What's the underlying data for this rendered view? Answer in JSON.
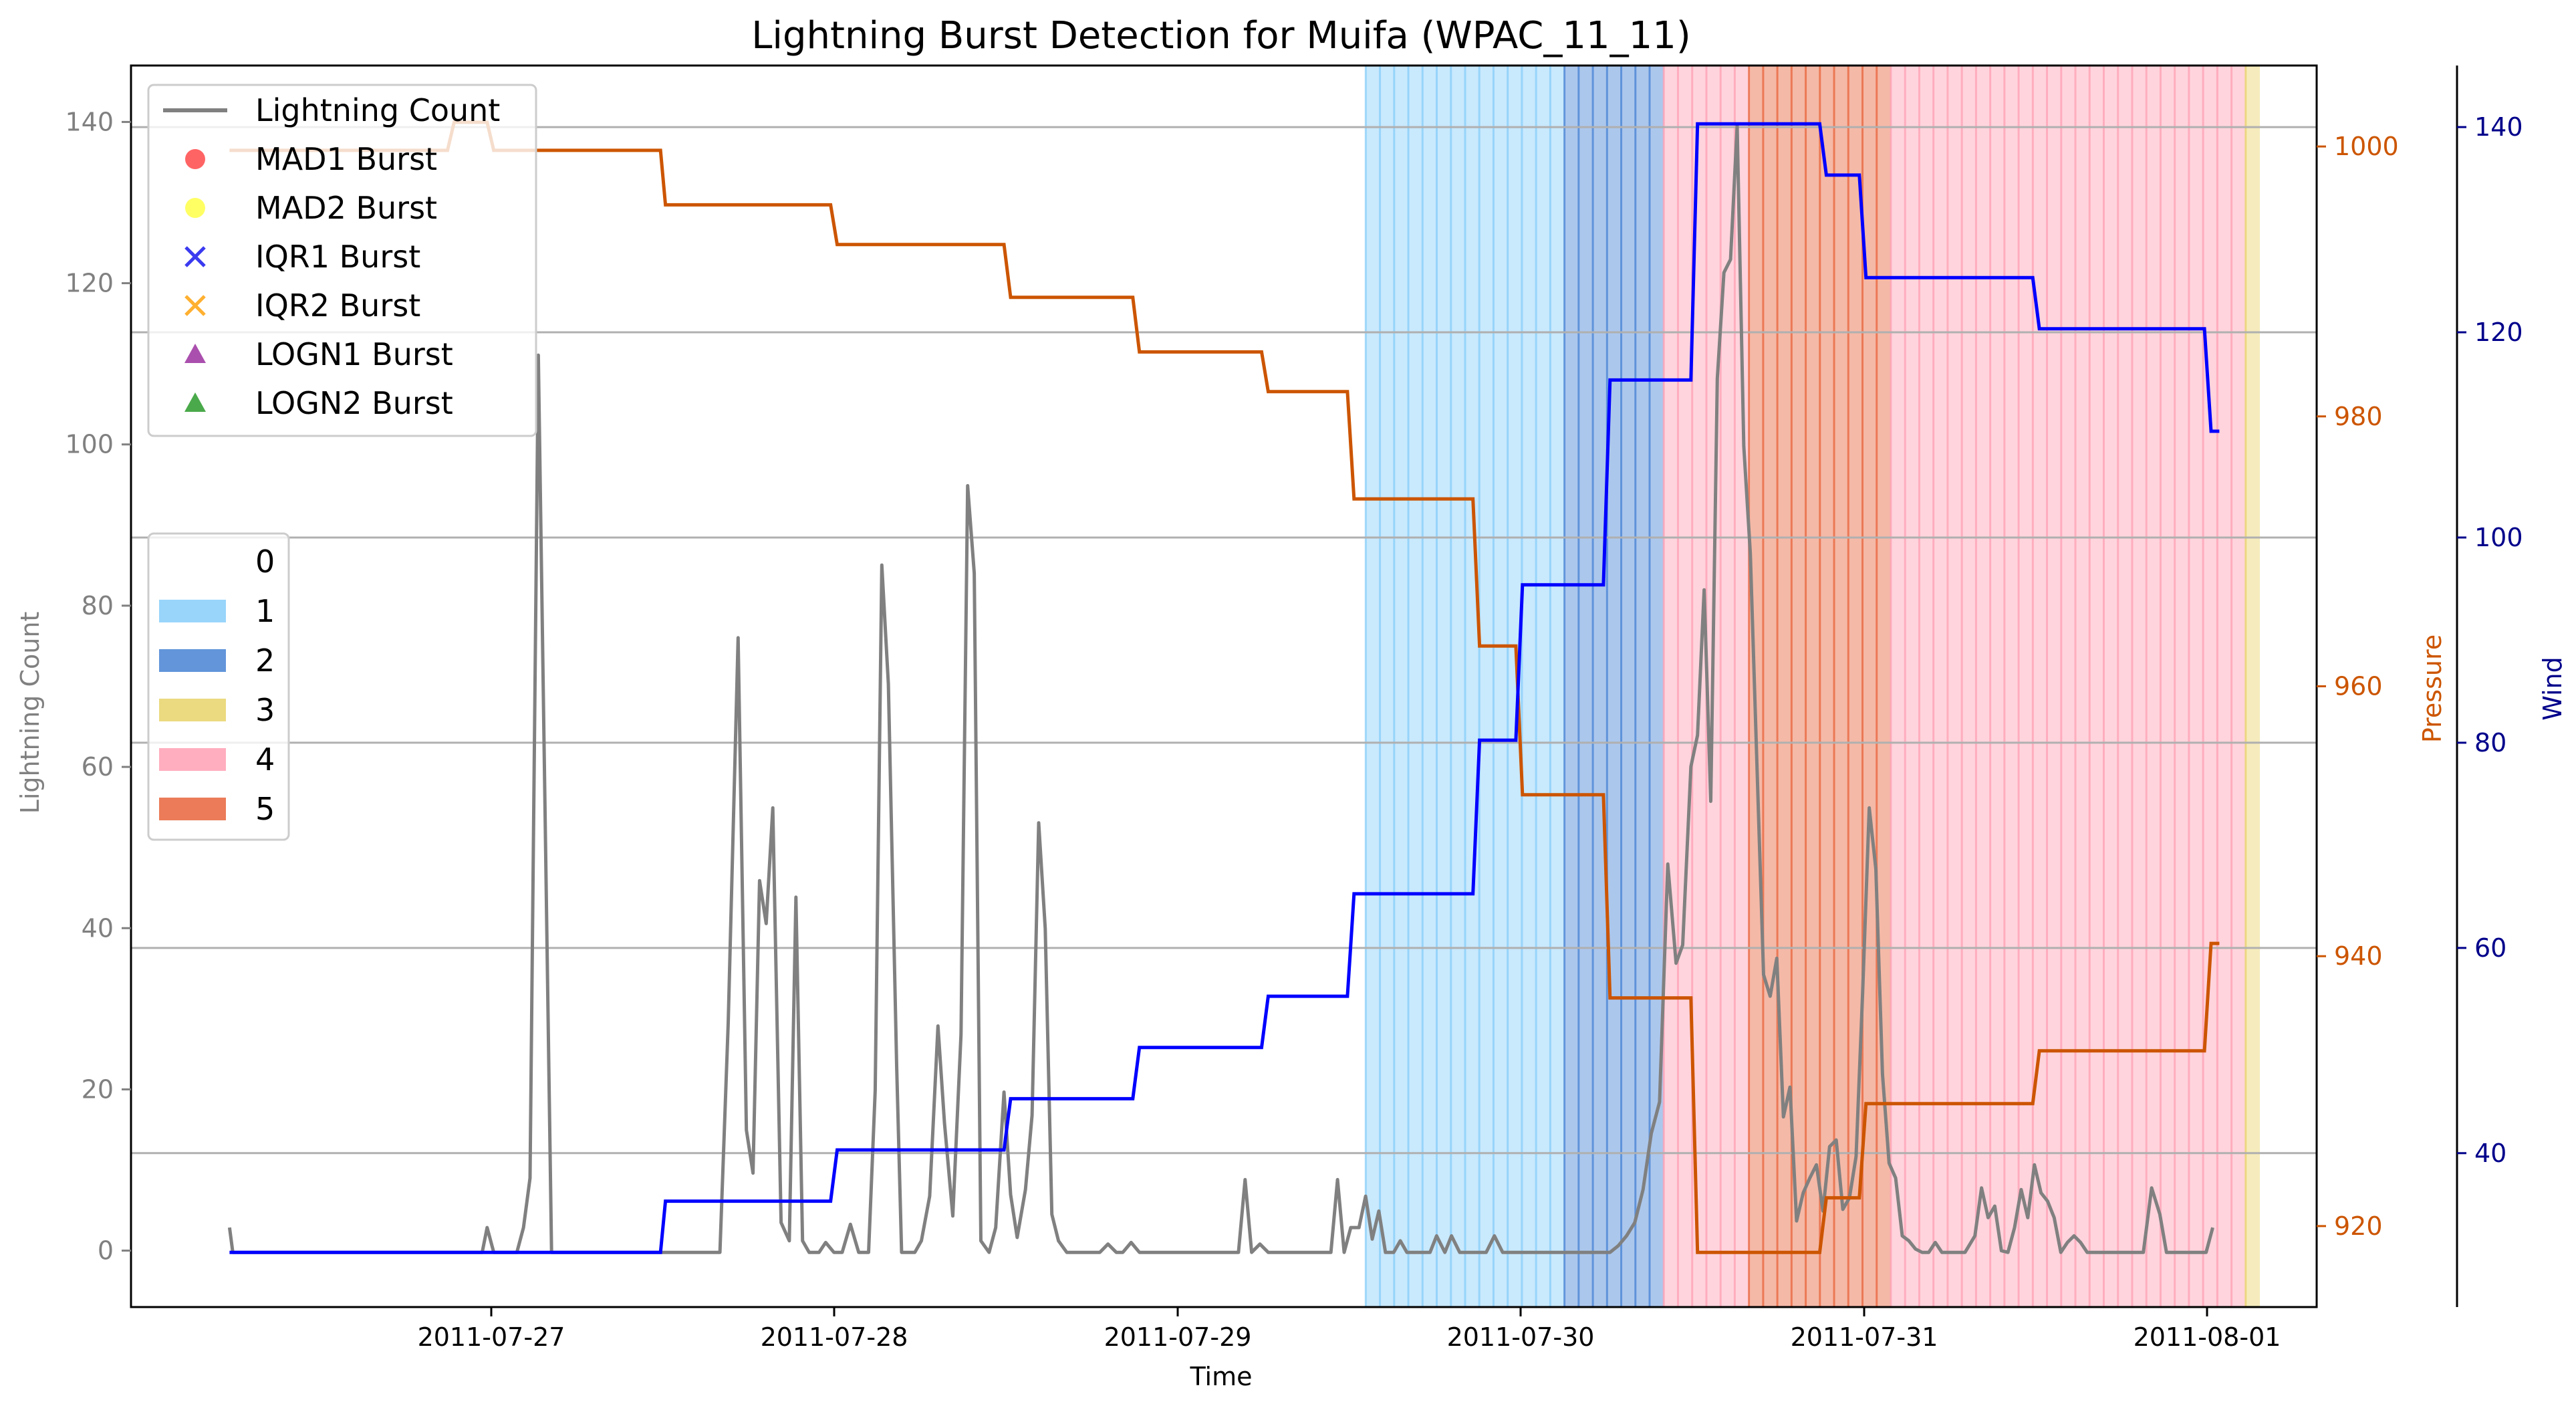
{
  "chart_data": {
    "type": "line",
    "title": "Lightning Burst Detection for Muifa (WPAC_11_11)",
    "xlabel": "Time",
    "ylabel_left": "Lightning Count",
    "ylabel_pressure": "Pressure",
    "ylabel_wind": "Wind",
    "xlim": [
      "2011-07-26 00:00",
      "2011-08-01 10:00"
    ],
    "x_ticks": [
      "2011-07-27",
      "2011-07-28",
      "2011-07-29",
      "2011-07-30",
      "2011-07-31",
      "2011-08-01"
    ],
    "ylim_left": [
      -7,
      147
    ],
    "y_ticks_left": [
      0,
      20,
      40,
      60,
      80,
      100,
      120,
      140
    ],
    "ylim_pressure": [
      914,
      1006
    ],
    "y_ticks_pressure": [
      920,
      940,
      960,
      980,
      1000
    ],
    "ylim_wind": [
      25,
      146
    ],
    "y_ticks_wind": [
      40,
      60,
      80,
      100,
      120,
      140
    ],
    "grid": "horizontal",
    "colors": {
      "lightning": "#808080",
      "pressure": "#cc5500",
      "wind": "#0000ff",
      "pressure_axis": "#cc5500",
      "wind_axis": "#00008b",
      "category_0": "#ffffff",
      "category_1": "#87cefa",
      "category_2": "#4682d4",
      "category_3": "#e8d36a",
      "category_4": "#ffa0b4",
      "category_5": "#e8643c"
    },
    "series": [
      {
        "name": "Lightning Count",
        "axis": "left",
        "step": false,
        "points": [
          [
            "2011-07-26 07:00",
            3
          ],
          [
            "2011-07-26 08:00",
            0
          ],
          [
            "2011-07-26 10:00",
            0
          ],
          [
            "2011-07-26 14:00",
            0
          ],
          [
            "2011-07-26 18:00",
            0
          ],
          [
            "2011-07-26 22:00",
            0
          ],
          [
            "2011-07-27 02:00",
            0
          ],
          [
            "2011-07-27 06:00",
            0
          ],
          [
            "2011-07-27 08:00",
            0
          ],
          [
            "2011-07-27 09:00",
            0
          ],
          [
            "2011-07-27 10:00",
            0
          ],
          [
            "2011-07-27 12:00",
            0
          ],
          [
            "2011-07-27 14:00",
            0
          ],
          [
            "2011-07-27 15:00",
            0
          ],
          [
            "2011-07-27 16:00",
            0
          ],
          [
            "2011-07-27 17:00",
            0
          ],
          [
            "2011-07-27 18:00",
            0
          ],
          [
            "2011-07-27 19:00",
            0
          ],
          [
            "2011-07-27 20:00",
            0
          ],
          [
            "2011-07-27 21:00",
            0
          ],
          [
            "2011-07-27 22:00",
            0
          ],
          [
            "2011-07-26 21:00",
            3
          ],
          [
            "2011-07-26 22:00",
            0
          ]
        ],
        "points_sorted": [
          [
            "2011-07-26 07:00",
            3
          ],
          [
            "2011-07-26 08:00",
            0
          ],
          [
            "2011-07-26 21:00",
            0
          ],
          [
            "2011-07-26 22:00",
            3
          ],
          [
            "2011-07-26 23:00",
            0
          ],
          [
            "2011-07-27 00:00",
            0
          ],
          [
            "2011-07-27 01:00",
            3
          ],
          [
            "2011-07-27 02:00",
            9
          ],
          [
            "2011-07-27 03:00",
            111
          ],
          [
            "2011-07-27 04:00",
            0
          ],
          [
            "2011-07-27 05:00",
            0
          ],
          [
            "2011-07-27 20:00",
            0
          ],
          [
            "2011-07-27 22:00",
            0
          ],
          [
            "2011-07-27 23:00",
            76
          ],
          [
            "2011-07-27 23:30",
            15
          ],
          [
            "2011-07-28 00:00",
            10
          ],
          [
            "2011-07-28 00:30",
            46
          ],
          [
            "2011-07-28 01:00",
            41
          ],
          [
            "2011-07-28 01:30",
            55
          ],
          [
            "2011-07-28 02:00",
            4
          ],
          [
            "2011-07-28 02:30",
            1
          ],
          [
            "2011-07-28 03:00",
            44
          ],
          [
            "2011-07-28 03:30",
            1
          ],
          [
            "2011-07-28 04:00",
            0
          ],
          [
            "2011-07-28 05:00",
            0
          ],
          [
            "2011-07-28 06:00",
            1
          ],
          [
            "2011-07-28 07:00",
            0
          ],
          [
            "2011-07-28 08:00",
            0
          ],
          [
            "2011-07-28 09:00",
            4
          ],
          [
            "2011-07-28 10:00",
            0
          ],
          [
            "2011-07-28 11:00",
            0
          ],
          [
            "2011-07-28 12:00",
            20
          ],
          [
            "2011-07-28 13:00",
            85
          ],
          [
            "2011-07-28 14:00",
            71
          ],
          [
            "2011-07-28 15:00",
            22
          ],
          [
            "2011-07-28 16:00",
            0
          ],
          [
            "2011-07-28 17:00",
            0
          ],
          [
            "2011-07-28 18:00",
            1
          ],
          [
            "2011-07-28 19:00",
            7
          ],
          [
            "2011-07-28 20:00",
            28
          ],
          [
            "2011-07-28 21:00",
            17
          ],
          [
            "2011-07-28 22:00",
            5
          ],
          [
            "2011-07-28 23:00",
            27
          ],
          [
            "2011-07-29 00:00",
            95
          ],
          [
            "2011-07-29 01:00",
            84
          ],
          [
            "2011-07-29 02:00",
            1
          ],
          [
            "2011-07-29 03:00",
            0
          ],
          [
            "2011-07-29 04:00",
            3
          ],
          [
            "2011-07-29 05:00",
            20
          ],
          [
            "2011-07-29 06:00",
            7
          ],
          [
            "2011-07-29 07:00",
            2
          ],
          [
            "2011-07-29 08:00",
            8
          ],
          [
            "2011-07-29 09:00",
            17
          ],
          [
            "2011-07-29 10:00",
            53
          ],
          [
            "2011-07-29 11:00",
            40
          ],
          [
            "2011-07-29 12:00",
            5
          ],
          [
            "2011-07-29 13:00",
            1
          ],
          [
            "2011-07-29 14:00",
            0
          ],
          [
            "2011-07-29 16:00",
            0
          ],
          [
            "2011-07-29 18:00",
            0
          ],
          [
            "2011-07-29 19:00",
            1
          ],
          [
            "2011-07-29 20:00",
            0
          ],
          [
            "2011-07-29 21:00",
            0
          ],
          [
            "2011-07-29 22:00",
            1
          ],
          [
            "2011-07-29 23:00",
            0
          ],
          [
            "2011-07-30 00:00",
            0
          ],
          [
            "2011-07-30 03:00",
            0
          ],
          [
            "2011-07-30 06:00",
            0
          ],
          [
            "2011-07-30 08:00",
            0
          ],
          [
            "2011-07-30 09:00",
            9
          ],
          [
            "2011-07-30 10:00",
            0
          ],
          [
            "2011-07-30 11:00",
            1
          ],
          [
            "2011-07-30 12:00",
            0
          ],
          [
            "2011-07-30 14:00",
            0
          ],
          [
            "2011-07-30 16:00",
            0
          ],
          [
            "2011-07-30 18:00",
            0
          ],
          [
            "2011-07-30 19:00",
            0
          ]
        ]
      }
    ]
  },
  "legend_markers": [
    {
      "label": "Lightning Count",
      "marker": "line",
      "color": "#808080"
    },
    {
      "label": "MAD1 Burst",
      "marker": "circle",
      "color": "#ff3030"
    },
    {
      "label": "MAD2 Burst",
      "marker": "circle",
      "color": "#ffff30"
    },
    {
      "label": "IQR1 Burst",
      "marker": "x",
      "color": "#3a3af0"
    },
    {
      "label": "IQR2 Burst",
      "marker": "x",
      "color": "#ffb030"
    },
    {
      "label": "LOGN1 Burst",
      "marker": "triangle",
      "color": "#9b30a0"
    },
    {
      "label": "LOGN2 Burst",
      "marker": "triangle",
      "color": "#2a9a2a"
    }
  ],
  "legend_categories": [
    {
      "label": "0",
      "color": "#ffffff"
    },
    {
      "label": "1",
      "color": "#87cefa"
    },
    {
      "label": "2",
      "color": "#4682d4"
    },
    {
      "label": "3",
      "color": "#e8d36a"
    },
    {
      "label": "4",
      "color": "#ffa0b4"
    },
    {
      "label": "5",
      "color": "#e8643c"
    }
  ]
}
